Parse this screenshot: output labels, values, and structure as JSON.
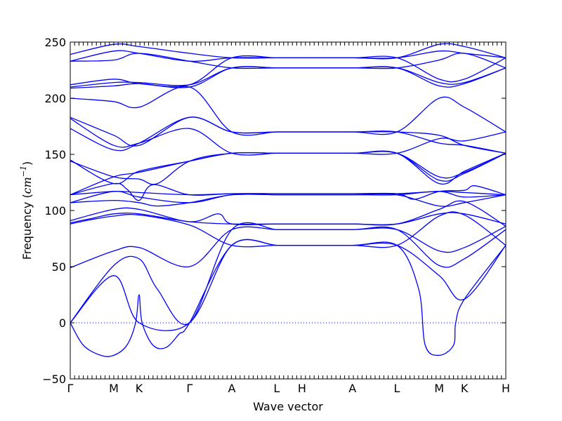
{
  "chart_data": {
    "type": "line",
    "title": "",
    "xlabel": "Wave vector",
    "ylabel": "Frequency ($cm^{-1}$)",
    "ylabel_parts": {
      "text": "Frequency (",
      "unit_base": "cm",
      "unit_exp": "−1",
      "close": ")"
    },
    "ylim": [
      -50,
      250
    ],
    "yticks": [
      -50,
      0,
      50,
      100,
      150,
      200,
      250
    ],
    "xlim": [
      0,
      1
    ],
    "grid": false,
    "zero_line": 0,
    "colors": {
      "bands": "#0000ff",
      "zero_line": "#0000ff"
    },
    "high_symmetry_points": [
      {
        "label": "Γ",
        "x": 0.0
      },
      {
        "label": "M",
        "x": 0.1
      },
      {
        "label": "K",
        "x": 0.158
      },
      {
        "label": "Γ",
        "x": 0.274
      },
      {
        "label": "A",
        "x": 0.371
      },
      {
        "label": "L",
        "x": 0.474
      },
      {
        "label": "H",
        "x": 0.532
      },
      {
        "label": "A",
        "x": 0.648
      },
      {
        "label": "L",
        "x": 0.75
      },
      {
        "label": "M",
        "x": 0.847
      },
      {
        "label": "K",
        "x": 0.905
      },
      {
        "label": "H",
        "x": 1.0
      }
    ],
    "series": [
      {
        "x": [
          0,
          0.1,
          0.158,
          0.274,
          0.371,
          0.474,
          0.532,
          0.648,
          0.75,
          0.847,
          0.905,
          1.0
        ],
        "values": [
          0,
          42,
          0,
          0,
          69,
          69,
          69,
          69,
          69,
          42,
          21,
          69
        ]
      },
      {
        "x": [
          0,
          0.03,
          0.07,
          0.1,
          0.13,
          0.15,
          0.158,
          0.165,
          0.19,
          0.22,
          0.25,
          0.274,
          0.371,
          0.474,
          0.532,
          0.648,
          0.75,
          0.8,
          0.815,
          0.847,
          0.88,
          0.885,
          0.905,
          1.0
        ],
        "values": [
          0,
          -20,
          -29,
          -29,
          -20,
          0,
          25,
          0,
          -20,
          -22,
          -10,
          0,
          69,
          69,
          69,
          69,
          69,
          30,
          -20,
          -29,
          -20,
          0,
          21,
          69
        ]
      },
      {
        "x": [
          0,
          0.1,
          0.158,
          0.2,
          0.274,
          0.371,
          0.474,
          0.532,
          0.648,
          0.75,
          0.847,
          0.905,
          1.0
        ],
        "values": [
          0,
          51,
          57,
          30,
          0,
          83,
          83,
          83,
          83,
          83,
          51,
          57,
          83
        ]
      },
      {
        "x": [
          0,
          0.1,
          0.158,
          0.274,
          0.371,
          0.474,
          0.532,
          0.648,
          0.75,
          0.847,
          0.905,
          1.0
        ],
        "values": [
          49,
          64,
          67,
          50,
          83,
          83,
          83,
          83,
          83,
          64,
          67,
          86
        ]
      },
      {
        "x": [
          0,
          0.05,
          0.1,
          0.158,
          0.274,
          0.371,
          0.474,
          0.532,
          0.648,
          0.75,
          0.847,
          0.905,
          1.0
        ],
        "values": [
          88,
          92,
          95,
          96,
          87,
          69,
          69,
          69,
          69,
          69,
          95,
          96,
          69
        ]
      },
      {
        "x": [
          0,
          0.05,
          0.1,
          0.158,
          0.274,
          0.371,
          0.474,
          0.532,
          0.648,
          0.75,
          0.847,
          0.905,
          1.0
        ],
        "values": [
          89,
          93,
          97,
          97,
          90,
          88,
          88,
          88,
          88,
          88,
          97,
          97,
          88
        ]
      },
      {
        "x": [
          0,
          0.1,
          0.158,
          0.274,
          0.34,
          0.371,
          0.474,
          0.532,
          0.648,
          0.75,
          0.847,
          0.905,
          1.0
        ],
        "values": [
          91,
          101,
          101,
          90,
          97,
          88,
          88,
          88,
          88,
          88,
          101,
          108,
          86
        ]
      },
      {
        "x": [
          0,
          0.1,
          0.158,
          0.2,
          0.274,
          0.371,
          0.474,
          0.532,
          0.648,
          0.75,
          0.847,
          0.905,
          1.0
        ],
        "values": [
          107,
          109,
          107,
          104,
          107,
          114,
          114,
          114,
          114,
          114,
          104,
          107,
          114
        ]
      },
      {
        "x": [
          0,
          0.1,
          0.158,
          0.274,
          0.371,
          0.474,
          0.532,
          0.648,
          0.75,
          0.847,
          0.905,
          1.0
        ],
        "values": [
          107,
          117,
          112,
          107,
          114,
          114,
          114,
          114,
          114,
          117,
          112,
          114
        ]
      },
      {
        "x": [
          0,
          0.1,
          0.158,
          0.274,
          0.371,
          0.474,
          0.532,
          0.648,
          0.75,
          0.847,
          0.905,
          1.0
        ],
        "values": [
          114,
          117,
          116,
          114,
          115,
          115,
          115,
          115,
          115,
          117,
          116,
          114
        ]
      },
      {
        "x": [
          0,
          0.1,
          0.13,
          0.158,
          0.19,
          0.274,
          0.371,
          0.474,
          0.532,
          0.648,
          0.75,
          0.79,
          0.847,
          0.905,
          0.93,
          1.0
        ],
        "values": [
          114,
          124,
          119,
          109,
          123,
          114,
          115,
          115,
          115,
          115,
          115,
          110,
          117,
          118,
          122,
          114
        ]
      },
      {
        "x": [
          0,
          0.1,
          0.158,
          0.274,
          0.371,
          0.474,
          0.532,
          0.648,
          0.75,
          0.847,
          0.905,
          1.0
        ],
        "values": [
          114,
          130,
          134,
          144,
          151,
          151,
          151,
          151,
          151,
          130,
          134,
          151
        ]
      },
      {
        "x": [
          0,
          0.1,
          0.158,
          0.2,
          0.274,
          0.371,
          0.474,
          0.532,
          0.648,
          0.75,
          0.847,
          0.905,
          1.0
        ],
        "values": [
          144,
          130,
          128,
          124,
          144,
          151,
          151,
          151,
          151,
          151,
          127,
          133,
          151
        ]
      },
      {
        "x": [
          0,
          0.1,
          0.158,
          0.274,
          0.371,
          0.474,
          0.532,
          0.648,
          0.75,
          0.847,
          0.905,
          1.0
        ],
        "values": [
          145,
          124,
          135,
          144,
          151,
          151,
          151,
          151,
          151,
          124,
          135,
          151
        ]
      },
      {
        "x": [
          0,
          0.1,
          0.158,
          0.274,
          0.371,
          0.474,
          0.532,
          0.648,
          0.75,
          0.847,
          0.905,
          1.0
        ],
        "values": [
          173,
          154,
          160,
          183,
          170,
          170,
          170,
          170,
          170,
          160,
          158,
          151
        ]
      },
      {
        "x": [
          0,
          0.1,
          0.158,
          0.274,
          0.371,
          0.474,
          0.532,
          0.648,
          0.75,
          0.847,
          0.905,
          1.0
        ],
        "values": [
          182,
          158,
          160,
          173,
          151,
          151,
          151,
          151,
          151,
          164,
          162,
          170
        ]
      },
      {
        "x": [
          0,
          0.1,
          0.158,
          0.274,
          0.371,
          0.474,
          0.532,
          0.648,
          0.75,
          0.847,
          0.905,
          1.0
        ],
        "values": [
          183,
          167,
          158,
          183,
          170,
          170,
          170,
          170,
          170,
          167,
          158,
          151
        ]
      },
      {
        "x": [
          0,
          0.1,
          0.158,
          0.274,
          0.371,
          0.474,
          0.532,
          0.648,
          0.75,
          0.847,
          0.905,
          1.0
        ],
        "values": [
          200,
          197,
          192,
          210,
          170,
          170,
          170,
          170,
          170,
          200,
          192,
          170
        ]
      },
      {
        "x": [
          0,
          0.1,
          0.158,
          0.274,
          0.371,
          0.474,
          0.532,
          0.648,
          0.75,
          0.847,
          0.905,
          1.0
        ],
        "values": [
          209,
          211,
          213,
          210,
          227,
          227,
          227,
          227,
          227,
          211,
          213,
          227
        ]
      },
      {
        "x": [
          0,
          0.1,
          0.158,
          0.274,
          0.371,
          0.474,
          0.532,
          0.648,
          0.75,
          0.847,
          0.905,
          1.0
        ],
        "values": [
          210,
          214,
          214,
          212,
          227,
          227,
          227,
          227,
          227,
          214,
          214,
          227
        ]
      },
      {
        "x": [
          0,
          0.1,
          0.158,
          0.274,
          0.371,
          0.474,
          0.532,
          0.648,
          0.75,
          0.847,
          0.905,
          1.0
        ],
        "values": [
          212,
          217,
          213,
          212,
          236,
          236,
          236,
          236,
          236,
          217,
          217,
          236
        ]
      },
      {
        "x": [
          0,
          0.1,
          0.158,
          0.274,
          0.371,
          0.474,
          0.532,
          0.648,
          0.75,
          0.847,
          0.905,
          1.0
        ],
        "values": [
          233,
          234,
          240,
          233,
          227,
          227,
          227,
          227,
          227,
          234,
          240,
          227
        ]
      },
      {
        "x": [
          0,
          0.1,
          0.158,
          0.274,
          0.371,
          0.474,
          0.532,
          0.648,
          0.75,
          0.847,
          0.905,
          1.0
        ],
        "values": [
          233,
          242,
          240,
          233,
          236,
          236,
          236,
          236,
          236,
          242,
          240,
          236
        ]
      },
      {
        "x": [
          0,
          0.1,
          0.158,
          0.274,
          0.371,
          0.474,
          0.532,
          0.648,
          0.75,
          0.847,
          0.905,
          1.0
        ],
        "values": [
          239,
          248,
          246,
          240,
          236,
          236,
          236,
          236,
          236,
          248,
          246,
          236
        ]
      }
    ]
  }
}
